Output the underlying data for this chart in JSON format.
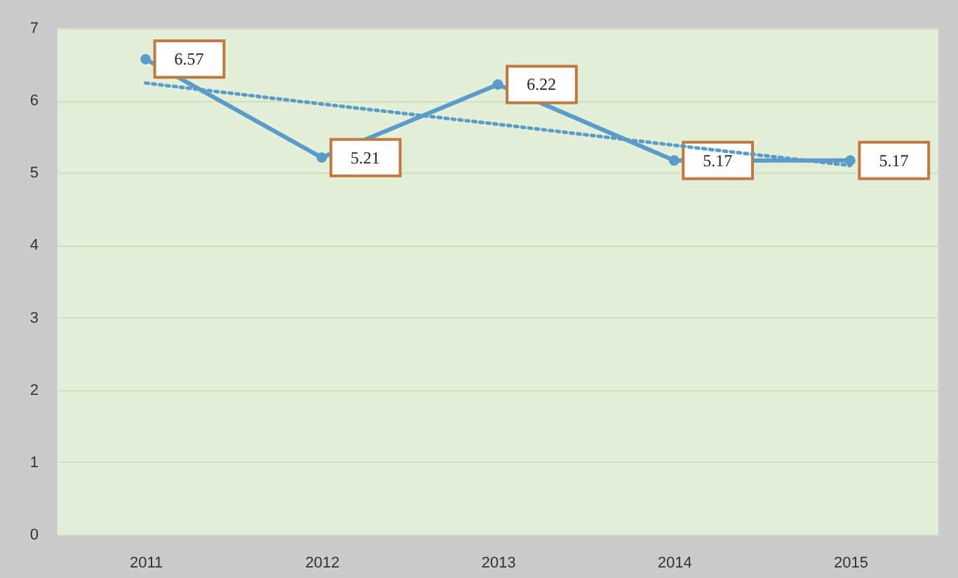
{
  "chart_data": {
    "type": "line",
    "categories": [
      "2011",
      "2012",
      "2013",
      "2014",
      "2015"
    ],
    "series": [
      {
        "type": "line",
        "color": "#5b9bc8",
        "values": [
          6.57,
          5.21,
          6.22,
          5.17,
          5.17
        ],
        "marker": "circle",
        "line_style": "solid",
        "value_labels": [
          "6.57",
          "5.21",
          "6.22",
          "5.17",
          "5.17"
        ]
      },
      {
        "type": "line",
        "color": "#5b9bc8",
        "values": [
          6.24,
          5.95,
          5.67,
          5.38,
          5.1
        ],
        "marker": "none",
        "line_style": "dotted"
      }
    ],
    "ylim": [
      0,
      7
    ],
    "yticks": [
      0,
      1,
      2,
      3,
      4,
      5,
      6,
      7
    ],
    "grid": "y",
    "legend": false
  }
}
